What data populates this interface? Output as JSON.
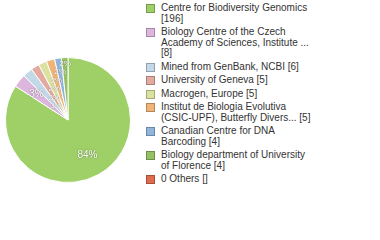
{
  "chart_data": {
    "type": "pie",
    "categories": [
      "Centre for Biodiversity Genomics [196]",
      "Biology Centre of the Czech Academy of Sciences, Institute ... [8]",
      "Mined from GenBank, NCBI [6]",
      "University of Geneva [5]",
      "Macrogen, Europe [5]",
      "Institut de Biologia Evolutiva (CSIC-UPF), Butterfly Divers... [5]",
      "Canadian Centre for DNA Barcoding [4]",
      "Biology department of University of Florence [4]",
      "0 Others []"
    ],
    "values": [
      84.12,
      3.43,
      2.58,
      2.15,
      2.15,
      2.15,
      1.72,
      1.72,
      0
    ],
    "value_labels": [
      "84%",
      "3%",
      "3%",
      "2%",
      "2%",
      "2%",
      "2%",
      "2%",
      null
    ],
    "colors": [
      "#9fd067",
      "#dcb6dc",
      "#c4d9e8",
      "#e3aaa0",
      "#dbe29f",
      "#f0b477",
      "#8fb5dd",
      "#95c164",
      "#e06a4e"
    ],
    "legend": "right",
    "data_labels": true
  }
}
